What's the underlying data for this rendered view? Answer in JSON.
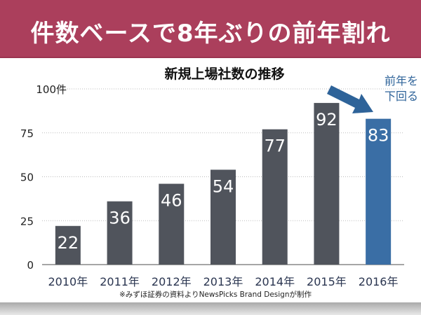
{
  "header": {
    "title": "件数ベースで8年ぶりの前年割れ"
  },
  "chart_data": {
    "type": "bar",
    "title": "新規上場社数の推移",
    "categories": [
      "2010年",
      "2011年",
      "2012年",
      "2013年",
      "2014年",
      "2015年",
      "2016年"
    ],
    "values": [
      22,
      36,
      46,
      54,
      77,
      92,
      83
    ],
    "ylim": [
      0,
      100
    ],
    "yticks": [
      0,
      25,
      50,
      75,
      100
    ],
    "ytick_labels": [
      "0",
      "25",
      "50",
      "75",
      "100件"
    ],
    "grid": true,
    "xlabel": "",
    "ylabel": "",
    "highlight_index": 6,
    "annotation": {
      "lines": [
        "前年を",
        "下回る"
      ]
    },
    "source_note": "※みずほ証券の資料よりNewsPicks Brand Designが制作",
    "colors": {
      "bar": "#50545c",
      "highlight": "#3a6ea5",
      "annotation": "#2e6399"
    }
  }
}
